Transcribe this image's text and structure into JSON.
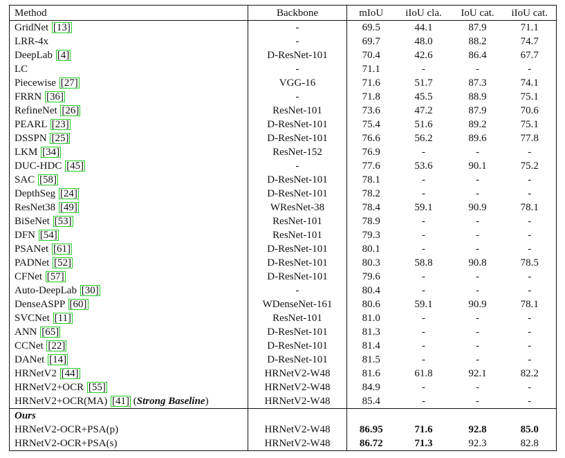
{
  "header": {
    "method": "Method",
    "backbone": "Backbone",
    "miou": "mIoU",
    "iiou_cla": "iIoU cla.",
    "iou_cat": "IoU cat.",
    "iiou_cat": "iIoU cat."
  },
  "rows": [
    {
      "method": "GridNet",
      "ref": "13",
      "backbone": "-",
      "miou": "69.5",
      "iiou_cla": "44.1",
      "iou_cat": "87.9",
      "iiou_cat": "71.1"
    },
    {
      "method": "LRR-4x",
      "ref": "",
      "backbone": "-",
      "miou": "69.7",
      "iiou_cla": "48.0",
      "iou_cat": "88.2",
      "iiou_cat": "74.7"
    },
    {
      "method": "DeepLab",
      "ref": "4",
      "backbone": "D-ResNet-101",
      "miou": "70.4",
      "iiou_cla": "42.6",
      "iou_cat": "86.4",
      "iiou_cat": "67.7"
    },
    {
      "method": "LC",
      "ref": "",
      "backbone": "-",
      "miou": "71.1",
      "iiou_cla": "-",
      "iou_cat": "-",
      "iiou_cat": "-"
    },
    {
      "method": "Piecewise",
      "ref": "27",
      "backbone": "VGG-16",
      "miou": "71.6",
      "iiou_cla": "51.7",
      "iou_cat": "87.3",
      "iiou_cat": "74.1"
    },
    {
      "method": "FRRN",
      "ref": "36",
      "backbone": "-",
      "miou": "71.8",
      "iiou_cla": "45.5",
      "iou_cat": "88.9",
      "iiou_cat": "75.1"
    },
    {
      "method": "RefineNet",
      "ref": "26",
      "backbone": "ResNet-101",
      "miou": "73.6",
      "iiou_cla": "47.2",
      "iou_cat": "87.9",
      "iiou_cat": "70.6"
    },
    {
      "method": "PEARL",
      "ref": "23",
      "backbone": "D-ResNet-101",
      "miou": "75.4",
      "iiou_cla": "51.6",
      "iou_cat": "89.2",
      "iiou_cat": "75.1"
    },
    {
      "method": "DSSPN",
      "ref": "25",
      "backbone": "D-ResNet-101",
      "miou": "76.6",
      "iiou_cla": "56.2",
      "iou_cat": "89.6",
      "iiou_cat": "77.8"
    },
    {
      "method": "LKM",
      "ref": "34",
      "backbone": "ResNet-152",
      "miou": "76.9",
      "iiou_cla": "-",
      "iou_cat": "-",
      "iiou_cat": "-"
    },
    {
      "method": "DUC-HDC",
      "ref": "45",
      "backbone": "-",
      "miou": "77.6",
      "iiou_cla": "53.6",
      "iou_cat": "90.1",
      "iiou_cat": "75.2"
    },
    {
      "method": "SAC",
      "ref": "58",
      "backbone": "D-ResNet-101",
      "miou": "78.1",
      "iiou_cla": "-",
      "iou_cat": "-",
      "iiou_cat": "-"
    },
    {
      "method": "DepthSeg",
      "ref": "24",
      "backbone": "D-ResNet-101",
      "miou": "78.2",
      "iiou_cla": "-",
      "iou_cat": "-",
      "iiou_cat": "-"
    },
    {
      "method": "ResNet38",
      "ref": "49",
      "backbone": "WResNet-38",
      "miou": "78.4",
      "iiou_cla": "59.1",
      "iou_cat": "90.9",
      "iiou_cat": "78.1"
    },
    {
      "method": "BiSeNet",
      "ref": "53",
      "backbone": "ResNet-101",
      "miou": "78.9",
      "iiou_cla": "-",
      "iou_cat": "-",
      "iiou_cat": "-"
    },
    {
      "method": "DFN",
      "ref": "54",
      "backbone": "ResNet-101",
      "miou": "79.3",
      "iiou_cla": "-",
      "iou_cat": "-",
      "iiou_cat": "-"
    },
    {
      "method": "PSANet",
      "ref": "61",
      "backbone": "D-ResNet-101",
      "miou": "80.1",
      "iiou_cla": "-",
      "iou_cat": "-",
      "iiou_cat": "-"
    },
    {
      "method": "PADNet",
      "ref": "52",
      "backbone": "D-ResNet-101",
      "miou": "80.3",
      "iiou_cla": "58.8",
      "iou_cat": "90.8",
      "iiou_cat": "78.5"
    },
    {
      "method": "CFNet",
      "ref": "57",
      "backbone": "D-ResNet-101",
      "miou": "79.6",
      "iiou_cla": "-",
      "iou_cat": "-",
      "iiou_cat": "-"
    },
    {
      "method": "Auto-DeepLab",
      "ref": "30",
      "backbone": "-",
      "miou": "80.4",
      "iiou_cla": "-",
      "iou_cat": "-",
      "iiou_cat": "-"
    },
    {
      "method": "DenseASPP",
      "ref": "60",
      "backbone": "WDenseNet-161",
      "miou": "80.6",
      "iiou_cla": "59.1",
      "iou_cat": "90.9",
      "iiou_cat": "78.1"
    },
    {
      "method": "SVCNet",
      "ref": "11",
      "backbone": "ResNet-101",
      "miou": "81.0",
      "iiou_cla": "-",
      "iou_cat": "-",
      "iiou_cat": "-"
    },
    {
      "method": "ANN",
      "ref": "65",
      "backbone": "D-ResNet-101",
      "miou": "81.3",
      "iiou_cla": "-",
      "iou_cat": "-",
      "iiou_cat": "-"
    },
    {
      "method": "CCNet",
      "ref": "22",
      "backbone": "D-ResNet-101",
      "miou": "81.4",
      "iiou_cla": "-",
      "iou_cat": "-",
      "iiou_cat": "-"
    },
    {
      "method": "DANet",
      "ref": "14",
      "backbone": "D-ResNet-101",
      "miou": "81.5",
      "iiou_cla": "-",
      "iou_cat": "-",
      "iiou_cat": "-"
    },
    {
      "method": "HRNetV2",
      "ref": "44",
      "backbone": "HRNetV2-W48",
      "miou": "81.6",
      "iiou_cla": "61.8",
      "iou_cat": "92.1",
      "iiou_cat": "82.2"
    },
    {
      "method": "HRNetV2+OCR",
      "ref": "55",
      "backbone": "HRNetV2-W48",
      "miou": "84.9",
      "iiou_cla": "-",
      "iou_cat": "-",
      "iiou_cat": "-"
    },
    {
      "method": "HRNetV2+OCR(MA)",
      "ref": "41",
      "suffix": "Strong Baseline",
      "backbone": "HRNetV2-W48",
      "miou": "85.4",
      "iiou_cla": "-",
      "iou_cat": "-",
      "iiou_cat": "-"
    }
  ],
  "ours_label": "Ours",
  "ours": [
    {
      "method": "HRNetV2-OCR+PSA(p)",
      "backbone": "HRNetV2-W48",
      "miou": "86.95",
      "iiou_cla": "71.6",
      "iou_cat": "92.8",
      "iiou_cat": "85.0",
      "bold": [
        "miou",
        "iiou_cla",
        "iou_cat",
        "iiou_cat"
      ]
    },
    {
      "method": "HRNetV2-OCR+PSA(s)",
      "backbone": "HRNetV2-W48",
      "miou": "86.72",
      "iiou_cla": "71.3",
      "iou_cat": "92.3",
      "iiou_cat": "82.8",
      "bold": [
        "miou",
        "iiou_cla"
      ]
    }
  ]
}
